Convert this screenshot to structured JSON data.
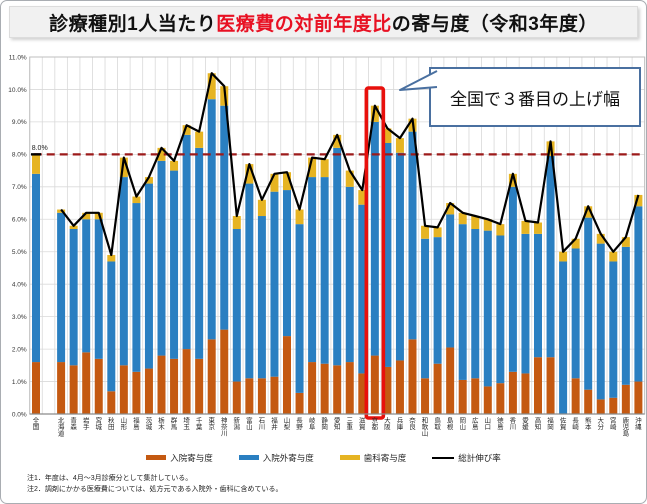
{
  "title": {
    "prefix": "診療種別1人当たり",
    "highlight": "医療費の対前年度比",
    "suffix": "の寄与度（令和3年度）"
  },
  "callout": {
    "text": "全国で３番目の上げ幅"
  },
  "notes": [
    "注1．年度は、4月～3月診療分として集計している。",
    "注2．調剤にかかる医療費については、処方元である入院外・歯科に含めている。"
  ],
  "chart_data": {
    "type": "bar",
    "stacked": true,
    "grid": true,
    "legend_position": "bottom",
    "ylim": [
      0,
      11
    ],
    "ytick_step": 1,
    "ytick_suffix": "%",
    "categories": [
      "全国",
      "北海道",
      "青森",
      "岩手",
      "宮城",
      "秋田",
      "山形",
      "福島",
      "茨城",
      "栃木",
      "群馬",
      "埼玉",
      "千葉",
      "東京",
      "神奈川",
      "新潟",
      "富山",
      "石川",
      "福井",
      "山梨",
      "長野",
      "岐阜",
      "静岡",
      "愛知",
      "三重",
      "滋賀",
      "京都",
      "大阪",
      "兵庫",
      "奈良",
      "和歌山",
      "鳥取",
      "島根",
      "岡山",
      "広島",
      "山口",
      "徳島",
      "香川",
      "愛媛",
      "高知",
      "福岡",
      "佐賀",
      "長崎",
      "熊本",
      "大分",
      "宮崎",
      "鹿児島",
      "沖縄"
    ],
    "series": [
      {
        "name": "入院寄与度",
        "type": "bar",
        "color": "#c45911",
        "values": [
          1.6,
          1.6,
          1.5,
          1.9,
          1.7,
          0.7,
          1.5,
          1.3,
          1.4,
          1.8,
          1.7,
          2.0,
          1.7,
          2.3,
          2.6,
          1.0,
          1.1,
          1.1,
          1.15,
          2.4,
          0.65,
          1.6,
          1.55,
          1.5,
          1.6,
          1.25,
          1.8,
          1.45,
          1.65,
          2.3,
          1.1,
          1.55,
          2.05,
          1.05,
          1.1,
          0.85,
          0.95,
          1.3,
          1.25,
          1.75,
          1.75,
          0.0,
          1.1,
          0.75,
          0.45,
          0.5,
          0.9,
          1.0
        ]
      },
      {
        "name": "入院外寄与度",
        "type": "bar",
        "color": "#2a7fc1",
        "values": [
          5.8,
          4.6,
          4.2,
          4.1,
          4.3,
          4.0,
          5.8,
          5.2,
          5.7,
          6.0,
          5.8,
          6.6,
          6.5,
          7.4,
          6.9,
          4.7,
          6.0,
          5.0,
          5.7,
          4.5,
          5.2,
          5.7,
          5.75,
          6.7,
          5.4,
          5.2,
          7.2,
          6.9,
          6.4,
          6.4,
          4.3,
          3.9,
          4.1,
          4.8,
          4.6,
          4.8,
          4.55,
          5.7,
          4.3,
          3.8,
          6.2,
          4.7,
          4.0,
          5.3,
          4.8,
          4.2,
          4.25,
          5.4
        ]
      },
      {
        "name": "歯科寄与度",
        "type": "bar",
        "color": "#e6b422",
        "values": [
          0.6,
          0.1,
          0.1,
          0.2,
          0.2,
          0.2,
          0.6,
          0.2,
          0.2,
          0.4,
          0.3,
          0.3,
          0.5,
          0.8,
          0.6,
          0.4,
          0.6,
          0.5,
          0.55,
          0.55,
          0.45,
          0.6,
          0.55,
          0.4,
          0.5,
          0.45,
          0.5,
          0.45,
          0.45,
          0.4,
          0.4,
          0.3,
          0.35,
          0.35,
          0.4,
          0.35,
          0.35,
          0.4,
          0.4,
          0.35,
          0.45,
          0.3,
          0.3,
          0.35,
          0.3,
          0.3,
          0.3,
          0.35
        ]
      },
      {
        "name": "総計伸び率",
        "type": "line",
        "color": "#000000",
        "values": [
          8.0,
          6.3,
          5.8,
          6.2,
          6.2,
          4.9,
          7.9,
          6.7,
          7.3,
          8.2,
          7.8,
          8.9,
          8.7,
          10.5,
          10.1,
          6.1,
          7.7,
          6.6,
          7.4,
          7.45,
          6.3,
          7.9,
          7.85,
          8.6,
          7.5,
          6.9,
          9.5,
          8.8,
          8.5,
          9.1,
          5.8,
          5.75,
          6.5,
          6.2,
          6.1,
          6.0,
          5.85,
          7.4,
          5.95,
          5.9,
          8.4,
          5.0,
          5.4,
          6.4,
          5.55,
          5.0,
          5.45,
          6.75
        ]
      }
    ],
    "reference_line": {
      "value": 8.0,
      "label": "8.0%",
      "color": "#9c1a1a",
      "style": "dashed"
    },
    "highlight": {
      "category": "京都",
      "color": "#e8100c"
    }
  }
}
